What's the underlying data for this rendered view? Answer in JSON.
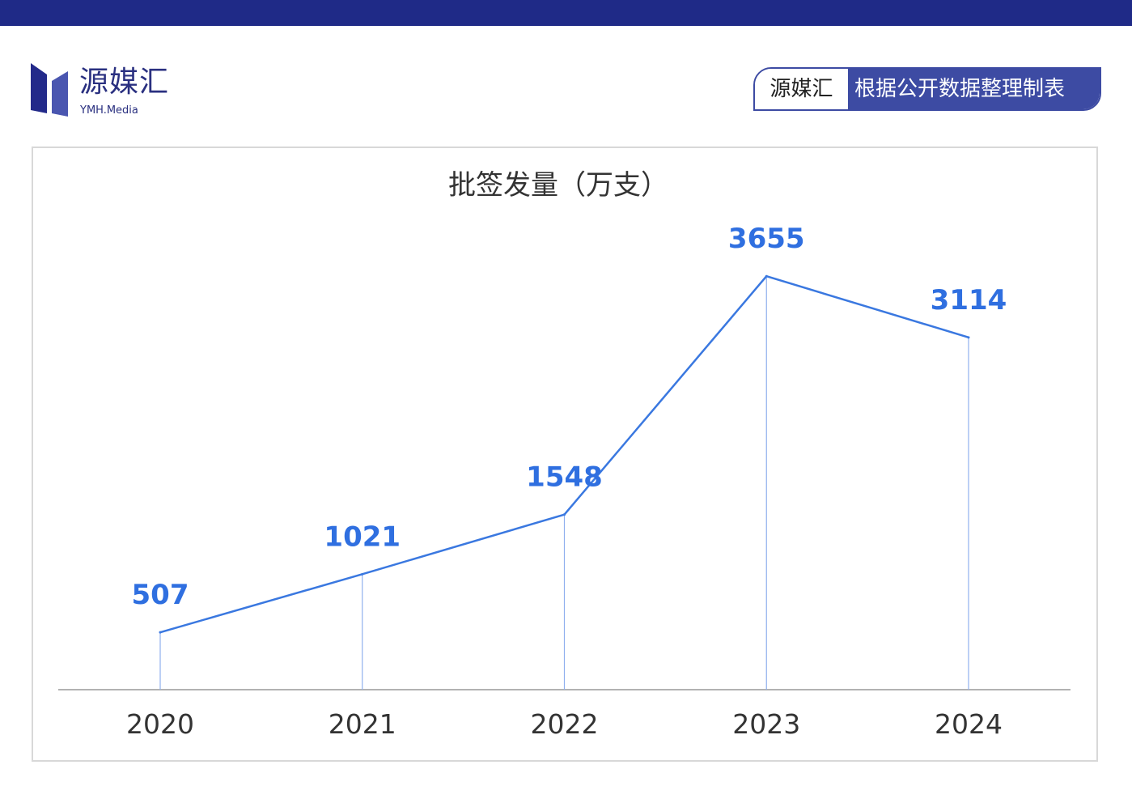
{
  "header": {
    "logo_name": "源媒汇",
    "logo_sub": "YMH.Media",
    "badge_left": "源媒汇",
    "badge_right": "根据公开数据整理制表"
  },
  "colors": {
    "bar": "#1f2a87",
    "line": "#3a78e0",
    "label": "#2f6fe0"
  },
  "chart_data": {
    "type": "line",
    "title": "批签发量（万支）",
    "categories": [
      "2020",
      "2021",
      "2022",
      "2023",
      "2024"
    ],
    "values": [
      507,
      1021,
      1548,
      3655,
      3114
    ],
    "xlabel": "",
    "ylabel": "",
    "ylim": [
      0,
      4000
    ],
    "grid": false,
    "legend": "none"
  }
}
